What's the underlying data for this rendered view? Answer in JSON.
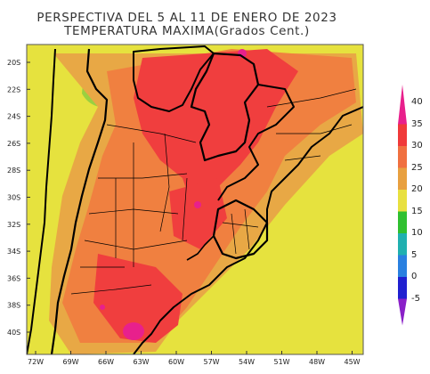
{
  "title": {
    "line1": "PERSPECTIVA DEL 5 AL 11 DE ENERO DE 2023",
    "line2": "TEMPERATURA MAXIMA(Grados Cent.)"
  },
  "axes": {
    "lat_ticks": [
      "20S",
      "22S",
      "24S",
      "26S",
      "28S",
      "30S",
      "32S",
      "34S",
      "36S",
      "38S",
      "40S"
    ],
    "lon_ticks": [
      "72W",
      "69W",
      "66W",
      "63W",
      "60W",
      "57W",
      "54W",
      "51W",
      "48W",
      "45W"
    ]
  },
  "colorbar": {
    "values": [
      "40",
      "35",
      "30",
      "25",
      "20",
      "15",
      "10",
      "5",
      "0",
      "-5"
    ],
    "colors": [
      "#e8208c",
      "#f03a3a",
      "#f07040",
      "#e8a040",
      "#e8e040",
      "#30c030",
      "#20b0b0",
      "#2a80e0",
      "#2020d0",
      "#8a20c8"
    ]
  },
  "palette": {
    "hot_35_40": "#f03e3e",
    "warm_30_35": "#f08040",
    "mild_25_30": "#e8a845",
    "cool_20_25": "#e6e23e",
    "cold_15_20": "#9ad040",
    "peak_40": "#e8208c"
  }
}
